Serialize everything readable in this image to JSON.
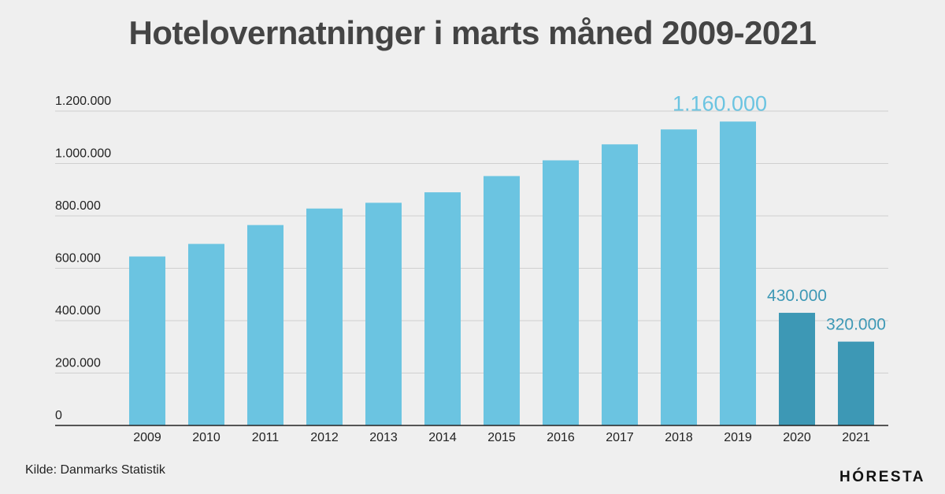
{
  "title": "Hotelovernatninger i marts måned 2009-2021",
  "source": "Kilde: Danmarks Statistik",
  "brand": {
    "name": "HORESTA",
    "logo_text": "HÓRESTA"
  },
  "colors": {
    "background": "#efefef",
    "bar": "#6bc4e1",
    "bar_highlight": "#3d98b5",
    "label_2019": "#6bc4e1",
    "label_covid": "#3d98b5",
    "grid": "#cfcfcf",
    "axis_text": "#222222",
    "title": "#444444"
  },
  "chart_data": {
    "type": "bar",
    "title": "Hotelovernatninger i marts måned 2009-2021",
    "xlabel": "",
    "ylabel": "",
    "categories": [
      "2009",
      "2010",
      "2011",
      "2012",
      "2013",
      "2014",
      "2015",
      "2016",
      "2017",
      "2018",
      "2019",
      "2020",
      "2021"
    ],
    "values": [
      645000,
      693000,
      765000,
      828000,
      850000,
      890000,
      952000,
      1012000,
      1073000,
      1130000,
      1160000,
      430000,
      320000
    ],
    "highlighted": [
      "2020",
      "2021"
    ],
    "data_labels": [
      {
        "category": "2019",
        "text": "1.160.000",
        "color": "#6bc4e1"
      },
      {
        "category": "2020",
        "text": "430.000",
        "color": "#3d98b5"
      },
      {
        "category": "2021",
        "text": "320.000",
        "color": "#3d98b5"
      }
    ],
    "yticks": [
      0,
      200000,
      400000,
      600000,
      800000,
      1000000,
      1200000
    ],
    "ytick_labels": [
      "0",
      "200.000",
      "400.000",
      "600.000",
      "800.000",
      "1.000.000",
      "1.200.000"
    ],
    "ylim": [
      0,
      1200000
    ],
    "grid": true,
    "legend": "none"
  }
}
